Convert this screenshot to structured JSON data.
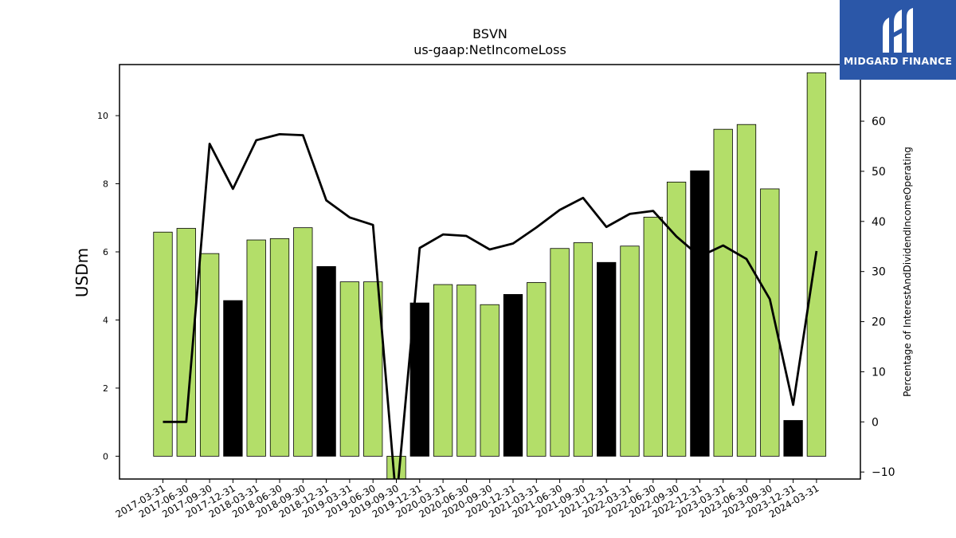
{
  "chart_data": {
    "type": "bar",
    "title": "BSVN",
    "subtitle": "us-gaap:NetIncomeLoss",
    "ylabel": "USDm",
    "y2label": "Percentage of InterestAndDividendIncomeOperating",
    "ylim": [
      -0.67,
      11.5
    ],
    "y2lim": [
      -11.4,
      71.3
    ],
    "yticks": [
      0,
      2,
      4,
      6,
      8,
      10
    ],
    "y2ticks": [
      -10,
      0,
      10,
      20,
      30,
      40,
      50,
      60
    ],
    "categories": [
      "2017-03-31",
      "2017-06-30",
      "2017-09-30",
      "2017-12-31",
      "2018-03-31",
      "2018-06-30",
      "2018-09-30",
      "2018-12-31",
      "2019-03-31",
      "2019-06-30",
      "2019-09-30",
      "2019-12-31",
      "2020-03-31",
      "2020-06-30",
      "2020-09-30",
      "2020-12-31",
      "2021-03-31",
      "2021-06-30",
      "2021-09-30",
      "2021-12-31",
      "2022-03-31",
      "2022-06-30",
      "2022-09-30",
      "2022-12-31",
      "2023-03-31",
      "2023-06-30",
      "2023-09-30",
      "2023-12-31",
      "2024-03-31"
    ],
    "series": [
      {
        "type": "bar",
        "values": [
          6.58,
          6.69,
          5.95,
          4.57,
          6.35,
          6.39,
          6.71,
          5.57,
          5.12,
          5.12,
          -0.72,
          4.5,
          5.04,
          5.03,
          4.45,
          4.75,
          5.1,
          6.1,
          6.27,
          5.69,
          6.17,
          7.02,
          8.05,
          8.38,
          9.6,
          9.74,
          7.85,
          1.05,
          11.26
        ],
        "colors": [
          "#b3de69",
          "#b3de69",
          "#b3de69",
          "#000000",
          "#b3de69",
          "#b3de69",
          "#b3de69",
          "#000000",
          "#b3de69",
          "#b3de69",
          "#b3de69",
          "#000000",
          "#b3de69",
          "#b3de69",
          "#b3de69",
          "#000000",
          "#b3de69",
          "#b3de69",
          "#b3de69",
          "#000000",
          "#b3de69",
          "#b3de69",
          "#b3de69",
          "#000000",
          "#b3de69",
          "#b3de69",
          "#b3de69",
          "#000000",
          "#b3de69"
        ]
      },
      {
        "type": "line",
        "axis": "right",
        "color": "#000000",
        "values": [
          0.0,
          0.0,
          55.5,
          46.5,
          56.2,
          57.4,
          57.2,
          44.2,
          40.8,
          39.3,
          -16.0,
          34.7,
          37.4,
          37.1,
          34.4,
          35.6,
          38.8,
          42.3,
          44.7,
          38.9,
          41.5,
          42.1,
          37.0,
          33.0,
          35.2,
          32.5,
          24.5,
          3.4,
          34.1
        ]
      }
    ],
    "grid": false,
    "legend": "none"
  },
  "logo": {
    "text": "MIDGARD FINANCE",
    "bg": "#2b57a8"
  }
}
